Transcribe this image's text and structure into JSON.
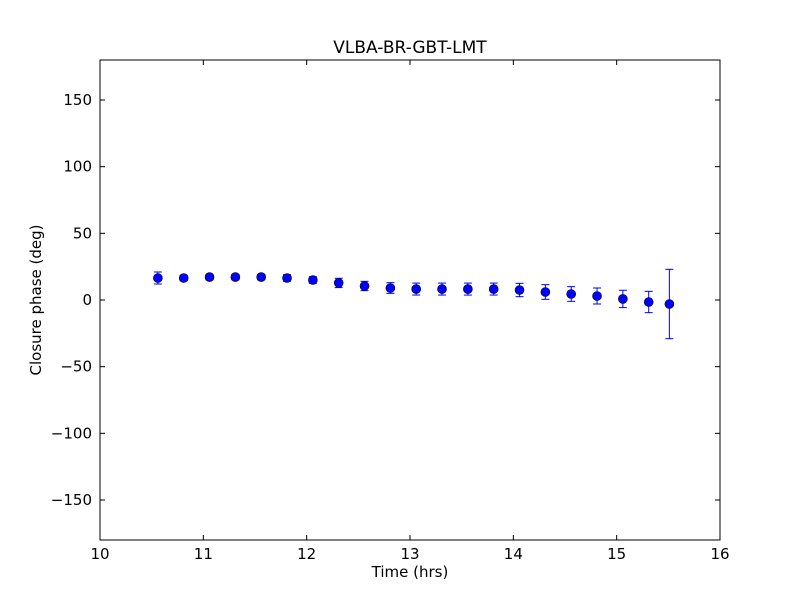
{
  "chart_data": {
    "type": "scatter",
    "title": "VLBA-BR-GBT-LMT",
    "xlabel": "Time (hrs)",
    "ylabel": "Closure phase (deg)",
    "xlim": [
      10,
      16
    ],
    "ylim": [
      -180,
      180
    ],
    "xticks": [
      10,
      11,
      12,
      13,
      14,
      15,
      16
    ],
    "xtick_labels": [
      "10",
      "11",
      "12",
      "13",
      "14",
      "15",
      "16"
    ],
    "yticks": [
      -150,
      -100,
      -50,
      0,
      50,
      100,
      150
    ],
    "ytick_labels": [
      "−150",
      "−100",
      "−50",
      "0",
      "50",
      "100",
      "150"
    ],
    "grid": false,
    "marker_color": "#0000ff",
    "series": [
      {
        "name": "closure phase",
        "x": [
          10.56,
          10.81,
          11.06,
          11.31,
          11.56,
          11.81,
          12.06,
          12.31,
          12.56,
          12.81,
          13.06,
          13.31,
          13.56,
          13.81,
          14.06,
          14.31,
          14.56,
          14.81,
          15.06,
          15.31,
          15.51
        ],
        "y": [
          16.5,
          16.5,
          17.2,
          17.2,
          17.2,
          16.5,
          15.0,
          12.8,
          10.5,
          9.0,
          8.2,
          8.2,
          8.2,
          8.2,
          7.5,
          6.0,
          4.5,
          3.0,
          0.8,
          -1.5,
          -3.0
        ],
        "yerr": [
          4.5,
          2.0,
          2.0,
          2.0,
          2.0,
          2.5,
          2.5,
          3.5,
          3.5,
          4.0,
          4.5,
          4.5,
          4.5,
          4.5,
          5.0,
          5.5,
          5.5,
          6.0,
          6.5,
          8.0,
          26.0
        ]
      }
    ]
  }
}
